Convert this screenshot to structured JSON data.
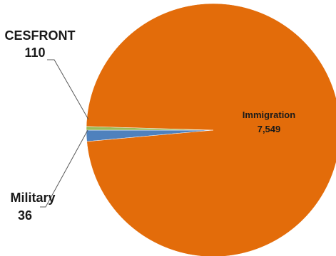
{
  "chart_data": {
    "type": "pie",
    "title": "",
    "slices": [
      {
        "label": "Immigration",
        "value_text": "7,549",
        "value": 7549,
        "color": "#e36c0a"
      },
      {
        "label": "CESFRONT",
        "value_text": "110",
        "value": 110,
        "color": "#4f81bd"
      },
      {
        "label": "Military",
        "value_text": "36",
        "value": 36,
        "color": "#9bbb59"
      }
    ],
    "legend": "none",
    "data_labels": "label and value"
  }
}
